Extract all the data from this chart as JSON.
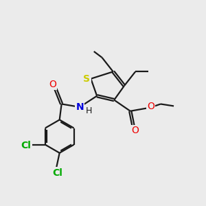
{
  "background_color": "#ebebeb",
  "bond_color": "#1a1a1a",
  "S_color": "#cccc00",
  "N_color": "#0000dd",
  "O_color": "#ee0000",
  "Cl_color": "#00aa00",
  "line_width": 1.6,
  "dbo": 0.055,
  "figsize": [
    3.0,
    3.0
  ],
  "dpi": 100,
  "xlim": [
    0,
    10
  ],
  "ylim": [
    0,
    10
  ]
}
